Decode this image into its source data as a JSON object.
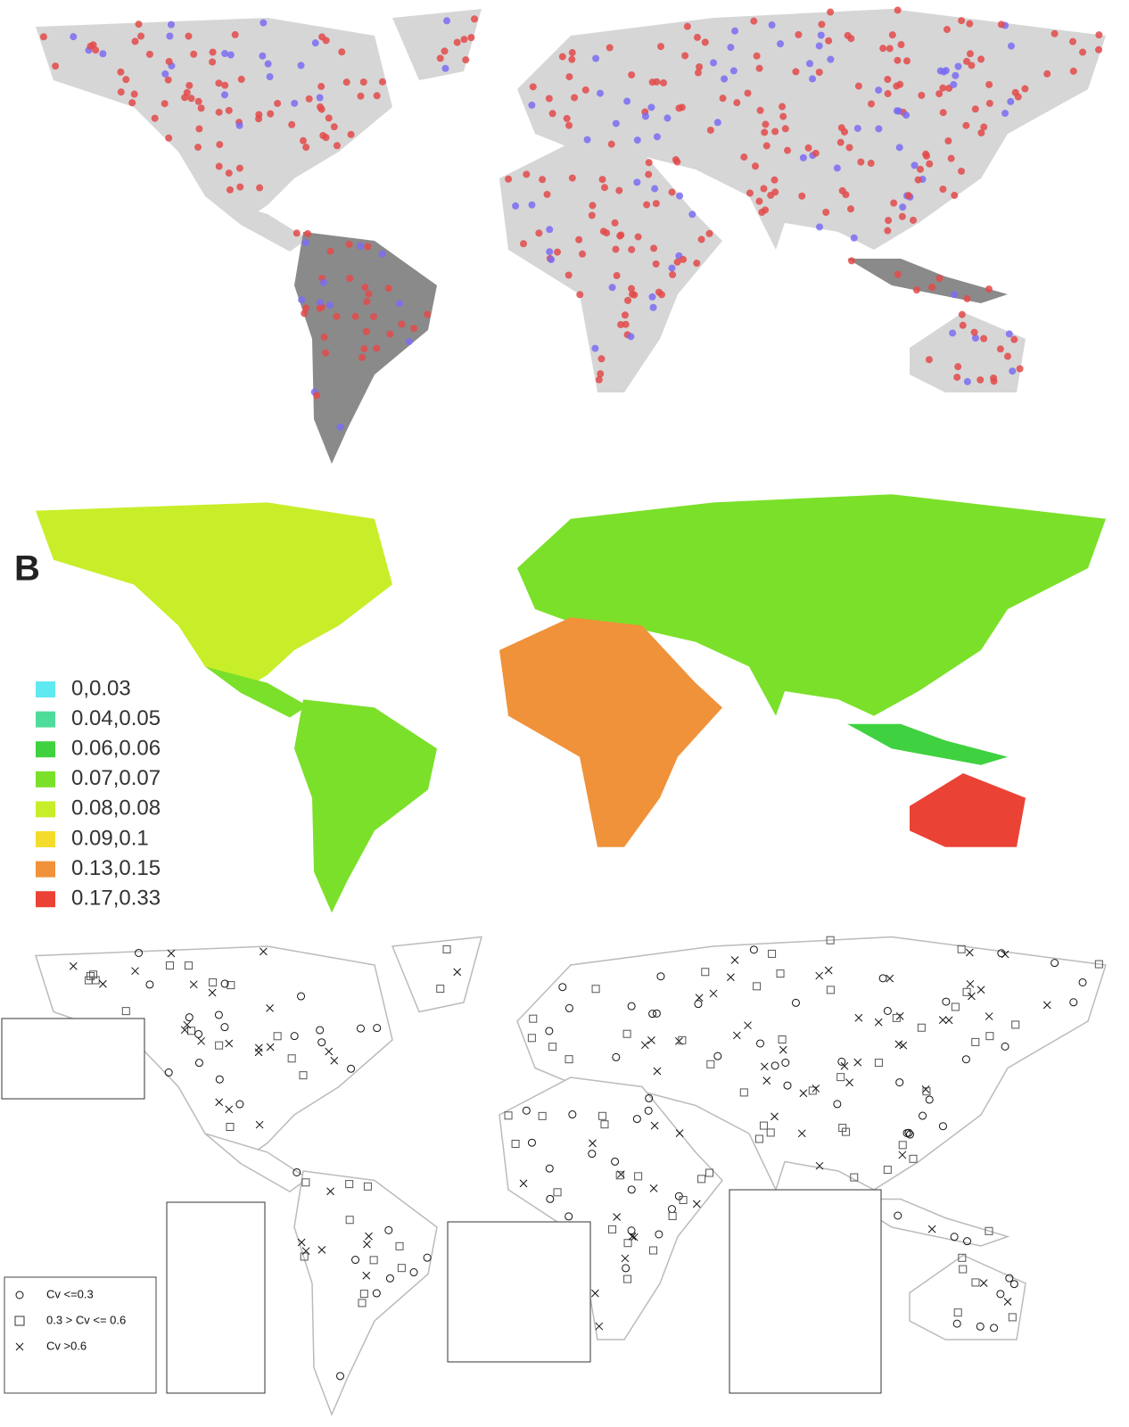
{
  "panel_b": {
    "label": "B",
    "legend": [
      {
        "label": "0,0.03",
        "color": "#5fe9f0"
      },
      {
        "label": "0.04,0.05",
        "color": "#4fdc9a"
      },
      {
        "label": "0.06,0.06",
        "color": "#3fd13f"
      },
      {
        "label": "0.07,0.07",
        "color": "#7be02a"
      },
      {
        "label": "0.08,0.08",
        "color": "#c8ee2a"
      },
      {
        "label": "0.09,0.1",
        "color": "#f3dc2c"
      },
      {
        "label": "0.13,0.15",
        "color": "#f0923a"
      },
      {
        "label": "0.17,0.33",
        "color": "#ea4335"
      }
    ]
  },
  "panel_c": {
    "legend": [
      {
        "label": "Cv <=0.3"
      },
      {
        "label": "0.3 > Cv <= 0.6"
      },
      {
        "label": "Cv >0.6"
      }
    ]
  }
}
